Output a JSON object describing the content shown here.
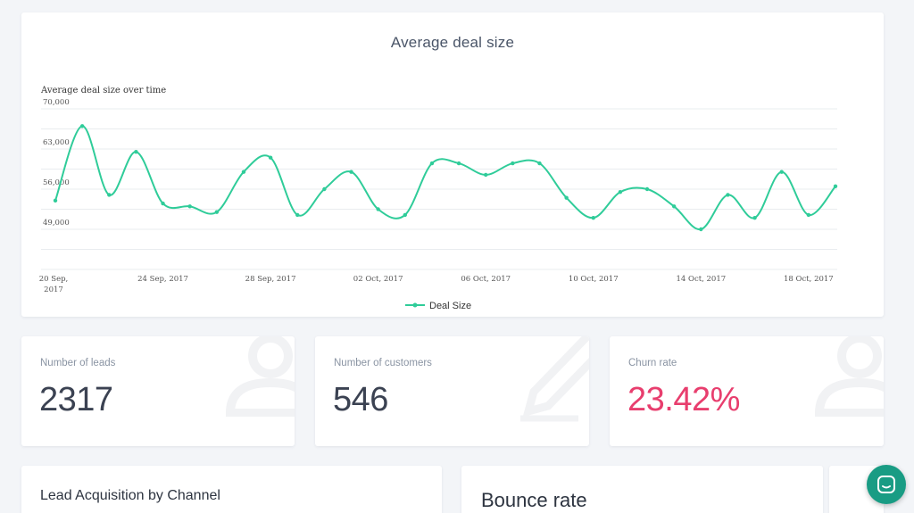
{
  "chart_card": {
    "title": "Average deal size",
    "colors": {
      "line": "#2fcc99",
      "grid": "#e9ecef"
    }
  },
  "chart_data": {
    "type": "line",
    "title": "Average deal size over time",
    "ylim": [
      42000,
      70000
    ],
    "y_ticks": [
      "70,000",
      "63,000",
      "56,000",
      "49,000"
    ],
    "x_tick_labels": [
      "20 Sep, 2017",
      "24 Sep, 2017",
      "28 Sep, 2017",
      "02 Oct, 2017",
      "06 Oct, 2017",
      "10 Oct, 2017",
      "14 Oct, 2017",
      "18 Oct, 2017"
    ],
    "x_start": "2017-09-20",
    "x": [
      "2017-09-20",
      "2017-09-21",
      "2017-09-22",
      "2017-09-23",
      "2017-09-24",
      "2017-09-25",
      "2017-09-26",
      "2017-09-27",
      "2017-09-28",
      "2017-09-29",
      "2017-09-30",
      "2017-10-01",
      "2017-10-02",
      "2017-10-03",
      "2017-10-04",
      "2017-10-05",
      "2017-10-06",
      "2017-10-07",
      "2017-10-08",
      "2017-10-09",
      "2017-10-10",
      "2017-10-11",
      "2017-10-12",
      "2017-10-13",
      "2017-10-14",
      "2017-10-15",
      "2017-10-16",
      "2017-10-17",
      "2017-10-18",
      "2017-10-19"
    ],
    "series": [
      {
        "name": "Deal Size",
        "values": [
          54000,
          67000,
          55000,
          62500,
          53500,
          53000,
          52000,
          59000,
          61500,
          51500,
          56000,
          59000,
          52500,
          51500,
          60500,
          60500,
          58500,
          60500,
          60500,
          54500,
          51000,
          55500,
          56000,
          53000,
          49000,
          55000,
          51000,
          59000,
          51500,
          56500
        ]
      }
    ],
    "grid": true,
    "legend": "bottom-center"
  },
  "stats": {
    "leads": {
      "label": "Number of leads",
      "value": "2317"
    },
    "customers": {
      "label": "Number of customers",
      "value": "546"
    },
    "churn": {
      "label": "Churn rate",
      "value": "23.42%",
      "color": "#e83e6e"
    }
  },
  "bottom": {
    "lead_title": "Lead Acquisition by Channel",
    "bounce_title": "Bounce rate"
  },
  "chat": {
    "icon": "chat-icon"
  }
}
